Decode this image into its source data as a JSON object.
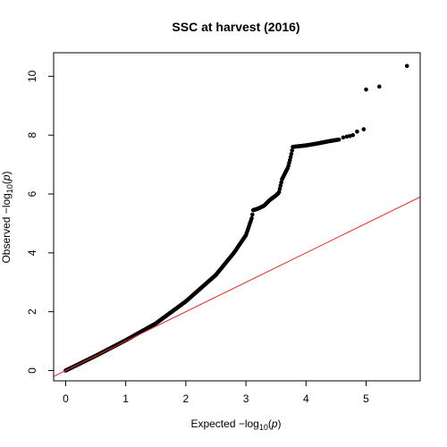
{
  "chart_data": {
    "type": "scatter",
    "title": "SSC at harvest (2016)",
    "xlabel": {
      "prefix": "Expected  −log",
      "sub": "10",
      "open": "(",
      "var": "p",
      "close": ")"
    },
    "ylabel": {
      "prefix": "Observed  −log",
      "sub": "10",
      "open": "(",
      "var": "p",
      "close": ")"
    },
    "xlim": [
      -0.2,
      5.9
    ],
    "ylim": [
      -0.35,
      10.8
    ],
    "xticks": [
      0,
      1,
      2,
      3,
      4,
      5
    ],
    "yticks": [
      0,
      2,
      4,
      6,
      8,
      10
    ],
    "grid": false,
    "reference_line": {
      "slope": 1,
      "intercept": 0,
      "color": "#e8261c"
    },
    "point_color": "#000000",
    "curve_knots": [
      [
        0,
        0
      ],
      [
        0.5,
        0.5
      ],
      [
        1,
        1.03
      ],
      [
        1.5,
        1.6
      ],
      [
        2,
        2.35
      ],
      [
        2.5,
        3.25
      ],
      [
        2.8,
        4.0
      ],
      [
        3.0,
        4.6
      ],
      [
        3.1,
        5.2
      ],
      [
        3.12,
        5.45
      ],
      [
        3.2,
        5.5
      ],
      [
        3.3,
        5.6
      ],
      [
        3.4,
        5.8
      ],
      [
        3.5,
        5.95
      ],
      [
        3.55,
        6.05
      ],
      [
        3.6,
        6.5
      ],
      [
        3.7,
        6.9
      ],
      [
        3.75,
        7.3
      ],
      [
        3.78,
        7.6
      ],
      [
        4.0,
        7.65
      ],
      [
        4.2,
        7.72
      ],
      [
        4.4,
        7.8
      ],
      [
        4.55,
        7.85
      ]
    ],
    "tail_points": [
      [
        4.62,
        7.92
      ],
      [
        4.68,
        7.95
      ],
      [
        4.73,
        7.97
      ],
      [
        4.78,
        8.0
      ],
      [
        4.85,
        8.12
      ],
      [
        4.96,
        8.2
      ],
      [
        5.0,
        9.55
      ],
      [
        5.22,
        9.65
      ],
      [
        5.68,
        10.35
      ]
    ]
  }
}
